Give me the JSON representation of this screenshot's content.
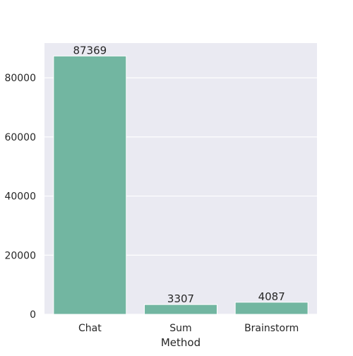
{
  "chart_data": {
    "type": "bar",
    "title": "",
    "xlabel": "Method",
    "ylabel": "",
    "categories": [
      "Chat",
      "Sum",
      "Brainstorm"
    ],
    "values": [
      87369,
      3307,
      4087
    ],
    "data_labels": [
      "87369",
      "3307",
      "4087"
    ],
    "ylim": [
      0,
      91736
    ],
    "yticks": [
      0,
      20000,
      40000,
      60000,
      80000
    ],
    "ytick_labels": [
      "0",
      "20000",
      "40000",
      "60000",
      "80000"
    ],
    "grid": true,
    "legend": "none",
    "colors": {
      "bar": "#72b6a1",
      "background": "#eaeaf2",
      "grid": "#ffffff",
      "text": "#262626"
    }
  }
}
